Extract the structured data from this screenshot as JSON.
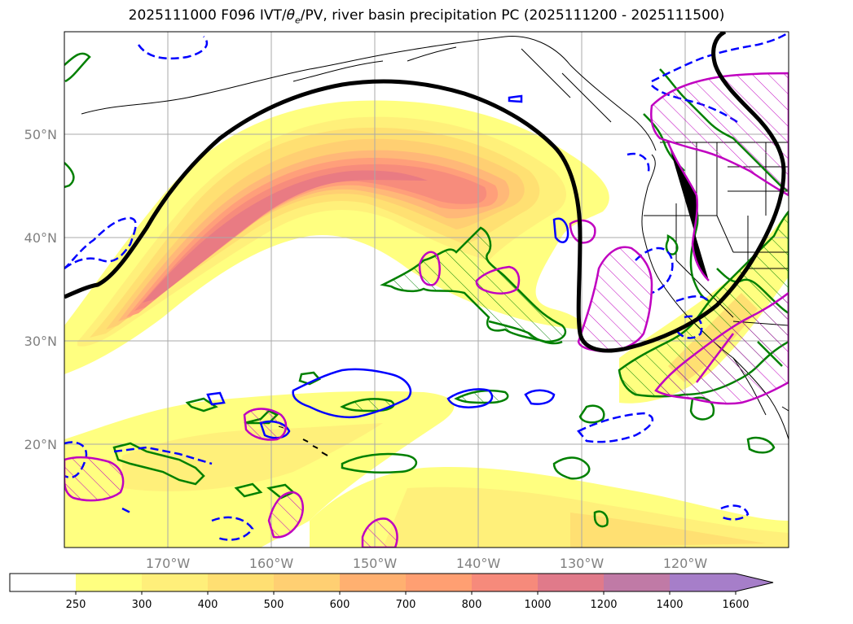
{
  "title_parts": {
    "prefix": "2025111000 F096 IVT/",
    "theta": "θ",
    "sub": "e",
    "suffix": "/PV, river basin precipitation PC (2025111200 - 2025111500)"
  },
  "map": {
    "lat_labels": [
      "50°N",
      "40°N",
      "30°N",
      "20°N"
    ],
    "lon_labels": [
      "170°W",
      "160°W",
      "150°W",
      "140°W",
      "130°W",
      "120°W"
    ],
    "extent": {
      "lon_min": -180,
      "lon_max": -110,
      "lat_min": 10,
      "lat_max": 60
    },
    "colors": {
      "ivt_fill": [
        "#ffff80",
        "#fff07a",
        "#ffe072",
        "#ffcf72",
        "#ffb878",
        "#ff9f7a",
        "#f78c7c",
        "#e97b83",
        "#cf7e9c",
        "#b57ab6",
        "#a67ec9"
      ],
      "thick_contour": "#000000",
      "green_contour": "#008000",
      "blue_contour": "#0000ff",
      "magenta_contour": "#c000c0"
    }
  },
  "colorbar": {
    "levels": [
      "250",
      "300",
      "400",
      "500",
      "600",
      "700",
      "800",
      "1000",
      "1200",
      "1400",
      "1600"
    ],
    "colors": [
      "#ffffff",
      "#ffff80",
      "#ffef7a",
      "#ffdf72",
      "#ffcf72",
      "#ffb070",
      "#ff9f72",
      "#f68a7b",
      "#e07a8a",
      "#c07aa6",
      "#a67ec9"
    ],
    "extend": "max"
  }
}
